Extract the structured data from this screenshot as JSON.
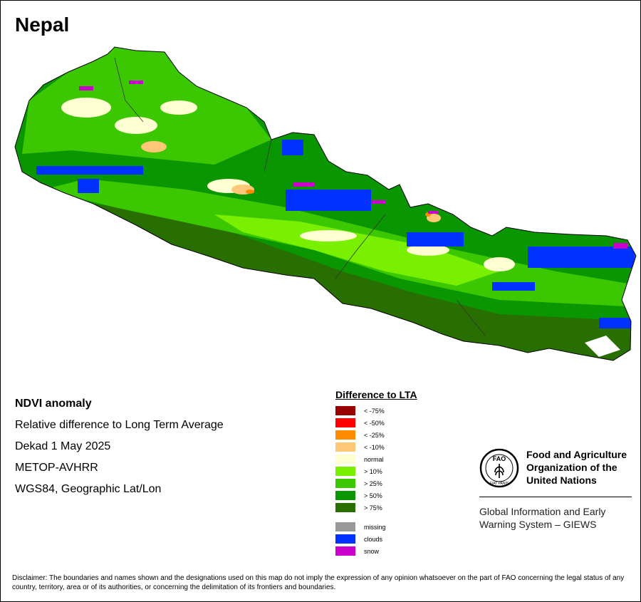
{
  "map": {
    "title": "Nepal"
  },
  "info": {
    "line1": "NDVI anomaly",
    "line2": "Relative difference to Long Term Average",
    "line3": "Dekad 1 May 2025",
    "line4": "METOP-AVHRR",
    "line5": "WGS84, Geographic Lat/Lon"
  },
  "legend": {
    "title": "Difference to LTA",
    "items": [
      {
        "label": "< -75%",
        "color": "#990000"
      },
      {
        "label": "< -50%",
        "color": "#ff0000"
      },
      {
        "label": "< -25%",
        "color": "#ff8c00"
      },
      {
        "label": "< -10%",
        "color": "#ffc878"
      },
      {
        "label": "normal",
        "color": "#ffffd2"
      },
      {
        "label": "> 10%",
        "color": "#78f000"
      },
      {
        "label": "> 25%",
        "color": "#3cc800"
      },
      {
        "label": "> 50%",
        "color": "#0a9600"
      },
      {
        "label": "> 75%",
        "color": "#286e00"
      }
    ],
    "extra": [
      {
        "label": "missing",
        "color": "#999999"
      },
      {
        "label": "clouds",
        "color": "#0032ff"
      },
      {
        "label": "snow",
        "color": "#cc00cc"
      }
    ]
  },
  "fao": {
    "name": "Food and Agriculture Organization of the United Nations",
    "giews": "Global Information and Early Warning System – GIEWS",
    "logo_text": "FAO",
    "logo_motto": "FIAT PANIS"
  },
  "disclaimer": "Disclaimer: The boundaries and names shown and the designations used on this map do not imply the expression of any opinion whatsoever on the part of FAO concerning the legal status of any country, territory, area or of its authorities, or concerning the delimitation of its frontiers and boundaries."
}
